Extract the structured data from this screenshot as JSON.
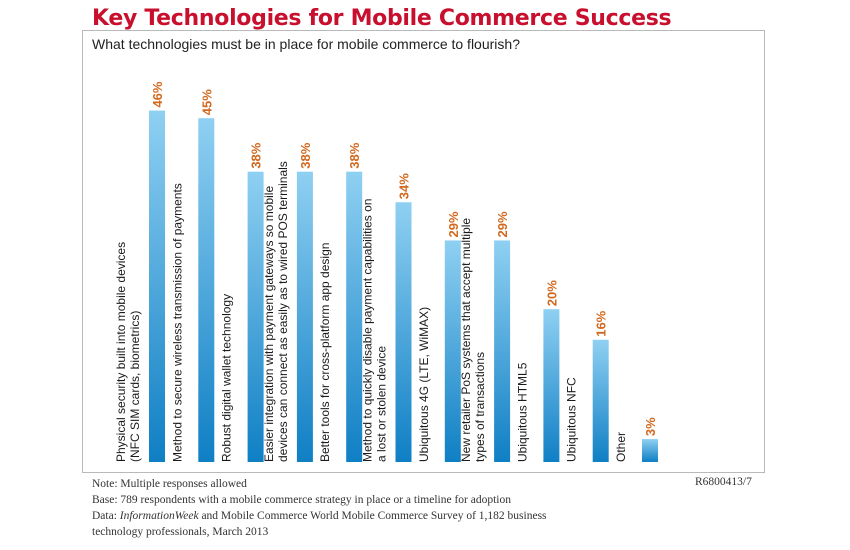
{
  "title": "Key Technologies for Mobile Commerce Success",
  "chart_data": {
    "type": "bar",
    "subtitle": "What technologies must be in place for mobile commerce to flourish?",
    "categories": [
      [
        "Physical security built into mobile devices",
        "(NFC SIM cards, biometrics)"
      ],
      [
        "Method to secure wireless transmission of payments"
      ],
      [
        "Robust digital wallet technology"
      ],
      [
        "Easier integration with payment gateways so mobile",
        "devices can connect as easily as to wired POS terminals"
      ],
      [
        "Better tools for cross-platform app design"
      ],
      [
        "Method to quickly disable payment capabilities on",
        "a lost or stolen device"
      ],
      [
        "Ubiquitous 4G (LTE, WiMAX)"
      ],
      [
        "New retailer PoS systems that accept multiple",
        "types of transactions"
      ],
      [
        "Ubiquitous HTML5"
      ],
      [
        "Ubiquitous NFC"
      ],
      [
        "Other"
      ]
    ],
    "values": [
      46,
      45,
      38,
      38,
      38,
      34,
      29,
      29,
      20,
      16,
      3
    ],
    "value_labels": [
      "46%",
      "45%",
      "38%",
      "38%",
      "38%",
      "34%",
      "29%",
      "29%",
      "20%",
      "16%",
      "3%"
    ],
    "unit": "%",
    "ylim": [
      0,
      50
    ],
    "xlabel": "",
    "ylabel": "",
    "colors": {
      "bar_top": "#8fd0f2",
      "bar_bottom": "#0f7fc4",
      "value_label": "#d2691e"
    }
  },
  "footer": {
    "note": "Note: Multiple responses allowed",
    "base": "Base: 789 respondents with a mobile commerce strategy in place or a timeline for adoption",
    "data_prefix": "Data: ",
    "data_source": "InformationWeek",
    "data_rest": " and Mobile Commerce World Mobile Commerce Survey of 1,182 business",
    "data_line2": "technology professionals, March 2013",
    "code": "R6800413/7"
  },
  "colors": {
    "title": "#c8102e",
    "panel_border": "#b9b9b9"
  }
}
